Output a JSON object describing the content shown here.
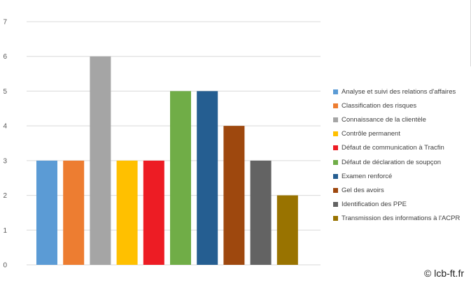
{
  "chart_data": {
    "type": "bar",
    "title": "",
    "xlabel": "",
    "ylabel": "",
    "ylim": [
      0,
      7
    ],
    "yticks": [
      0,
      1,
      2,
      3,
      4,
      5,
      6,
      7
    ],
    "grid": true,
    "legend_position": "right",
    "categories": [
      "Analyse et suivi des relations d'affaires",
      "Classification des risques",
      "Connaissance de la clientèle",
      "Contrôle permanent",
      "Défaut de communication à Tracfin",
      "Défaut de déclaration de soupçon",
      "Examen renforcé",
      "Gel des avoirs",
      "Identification des PPE",
      "Transmission des informations à l'ACPR"
    ],
    "values": [
      3,
      3,
      6,
      3,
      3,
      5,
      5,
      4,
      3,
      2
    ],
    "colors": [
      "#5b9bd5",
      "#ed7d31",
      "#a5a5a5",
      "#ffc000",
      "#ed1c24",
      "#70ad47",
      "#255e91",
      "#9e480e",
      "#636363",
      "#997300"
    ]
  },
  "watermark": "© lcb-ft.fr"
}
